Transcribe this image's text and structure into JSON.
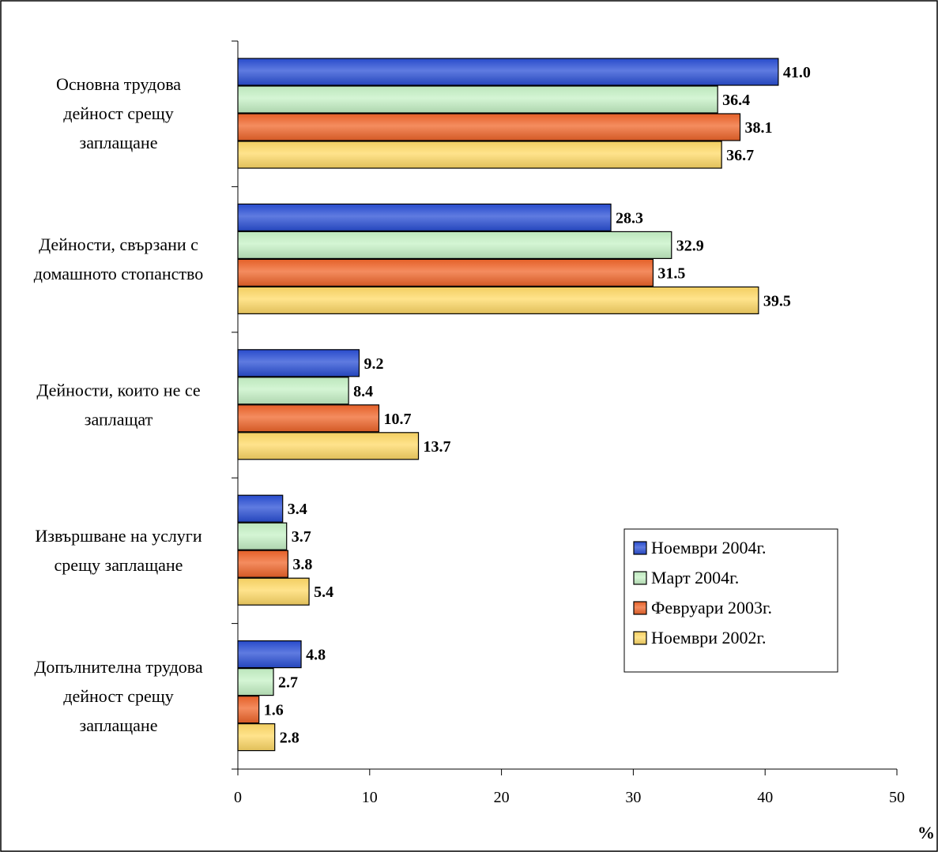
{
  "chart_data": {
    "type": "bar",
    "orientation": "horizontal",
    "categories": [
      [
        "Основна трудова",
        "дейност срещу",
        "заплащане"
      ],
      [
        "Дейности, свързани с",
        "домашното стопанство"
      ],
      [
        "Дейности, които не се",
        "заплащат"
      ],
      [
        "Извършване на услуги",
        "срещу заплащане"
      ],
      [
        "Допълнителна трудова",
        "дейност срещу",
        "заплащане"
      ]
    ],
    "series": [
      {
        "name": "Ноември 2004г.",
        "color": "#2a4fd6",
        "values": [
          41.0,
          28.3,
          9.2,
          3.4,
          4.8
        ]
      },
      {
        "name": "Март 2004г.",
        "color": "#c6f2c6",
        "values": [
          36.4,
          32.9,
          8.4,
          3.7,
          2.7
        ]
      },
      {
        "name": "Февруари 2003г.",
        "color": "#f0652a",
        "values": [
          38.1,
          31.5,
          10.7,
          3.8,
          1.6
        ]
      },
      {
        "name": "Ноември 2002г.",
        "color": "#ffd966",
        "values": [
          36.7,
          39.5,
          13.7,
          5.4,
          2.8
        ]
      }
    ],
    "x_ticks": [
      "0",
      "10",
      "20",
      "30",
      "40",
      "50"
    ],
    "xlim": [
      0,
      50
    ],
    "xlabel": "%",
    "value_format": "0.0",
    "grid": false,
    "legend_position": "bottom-right"
  }
}
